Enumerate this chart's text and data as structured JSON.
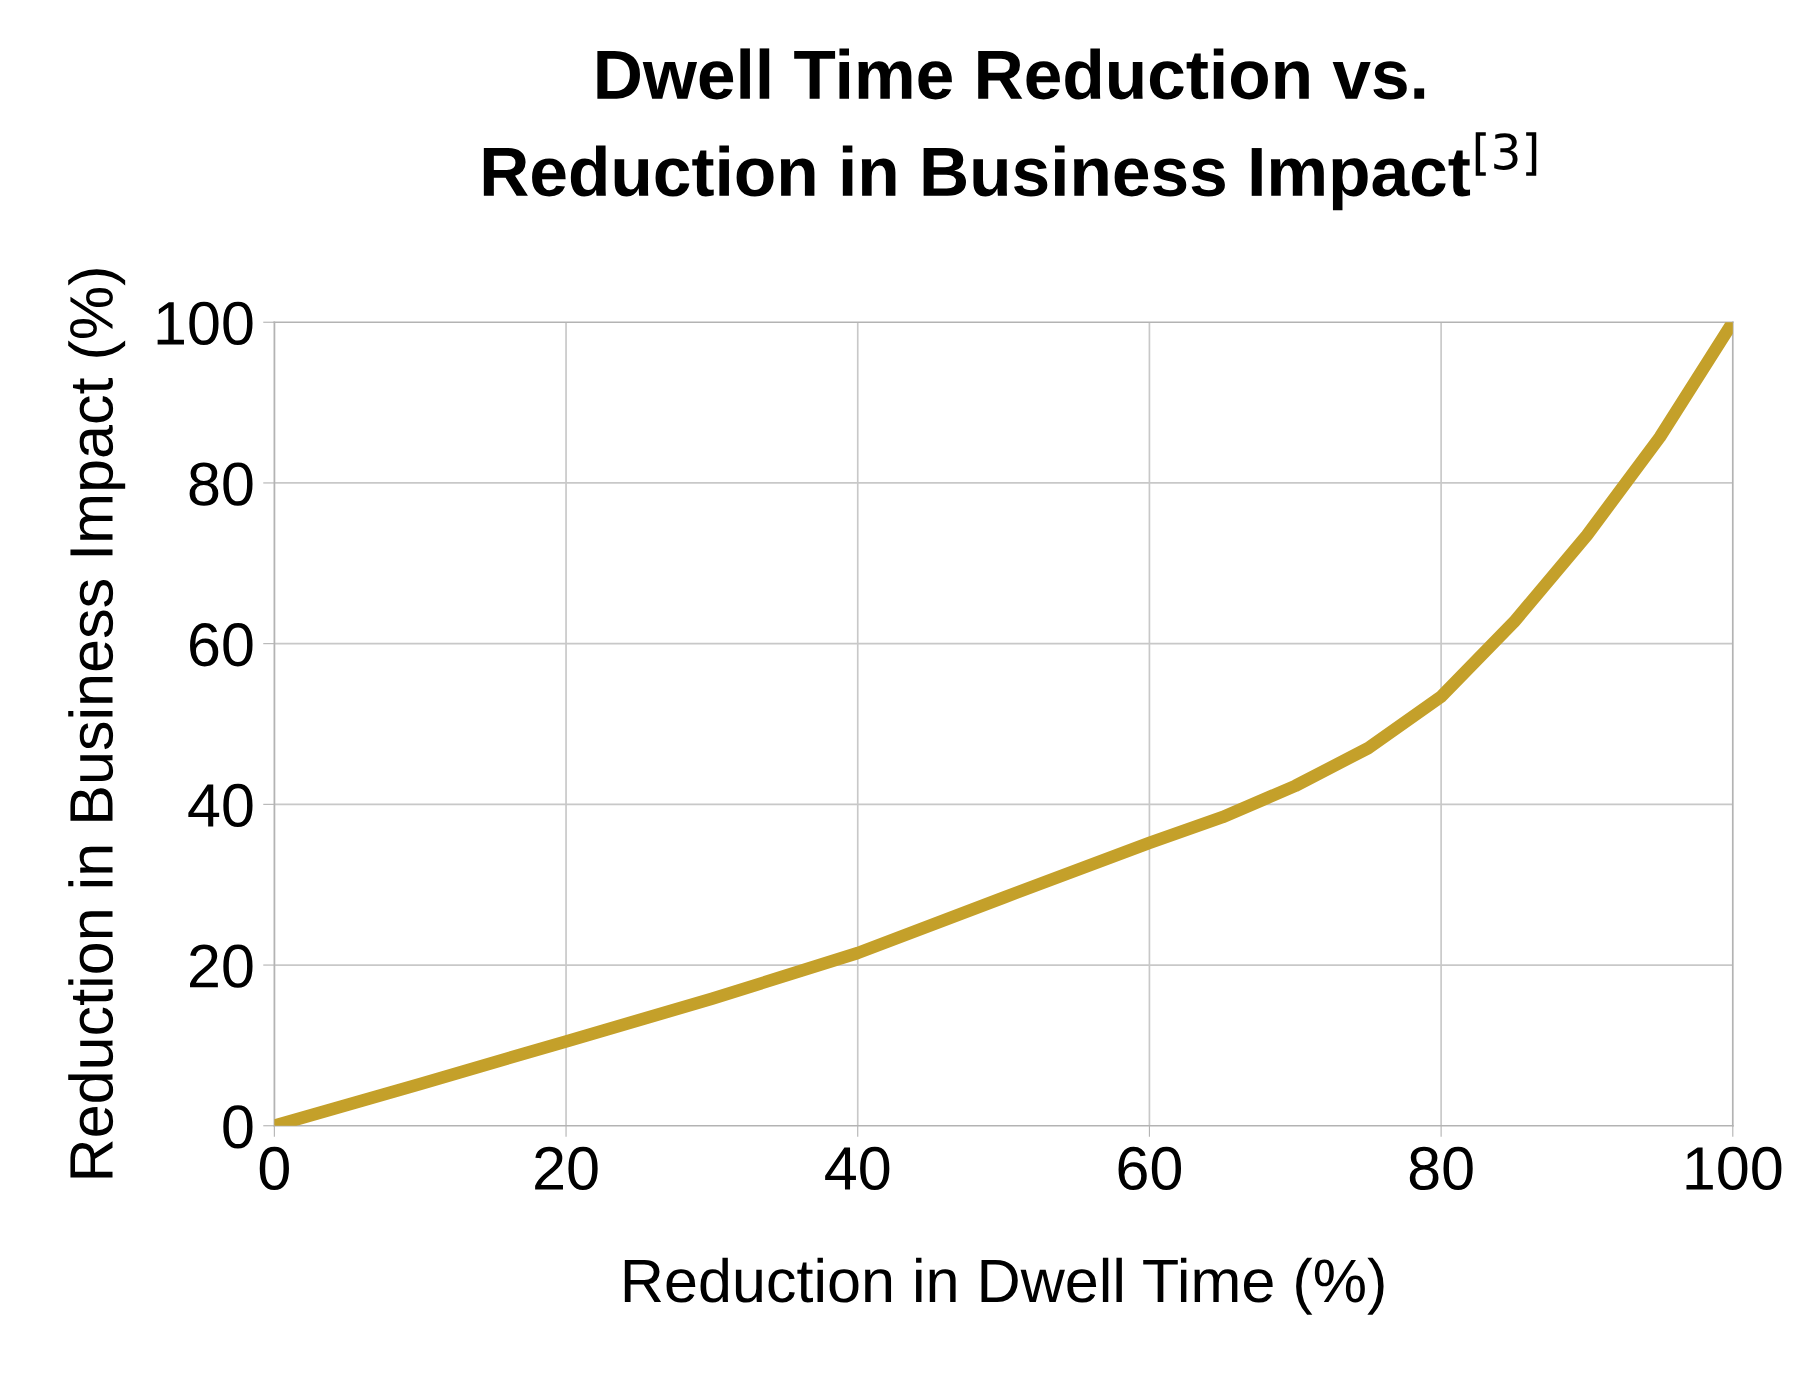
{
  "chart_data": {
    "type": "line",
    "title": "Dwell Time Reduction vs.\nReduction in Business Impact$^{[3]}$",
    "xlabel": "Reduction in Dwell Time (%)",
    "ylabel": "Reduction in Business Impact (%)",
    "series": [
      {
        "color": "#c4a02a",
        "x": [
          0,
          10,
          20,
          30,
          40,
          50,
          60,
          65,
          70,
          75,
          80,
          85,
          90,
          95,
          100
        ],
        "values": [
          0,
          5.2,
          10.5,
          15.8,
          21.5,
          28.4,
          35.2,
          38.4,
          42.3,
          47,
          53.4,
          62.7,
          73.5,
          85.7,
          100
        ]
      }
    ],
    "xlim": [
      0,
      100
    ],
    "ylim": [
      0,
      100
    ],
    "xticks": [
      0,
      20,
      40,
      60,
      80,
      100
    ],
    "yticks": [
      0,
      20,
      40,
      60,
      80,
      100
    ],
    "grid": true,
    "line_style": "solid",
    "marker": "none"
  }
}
